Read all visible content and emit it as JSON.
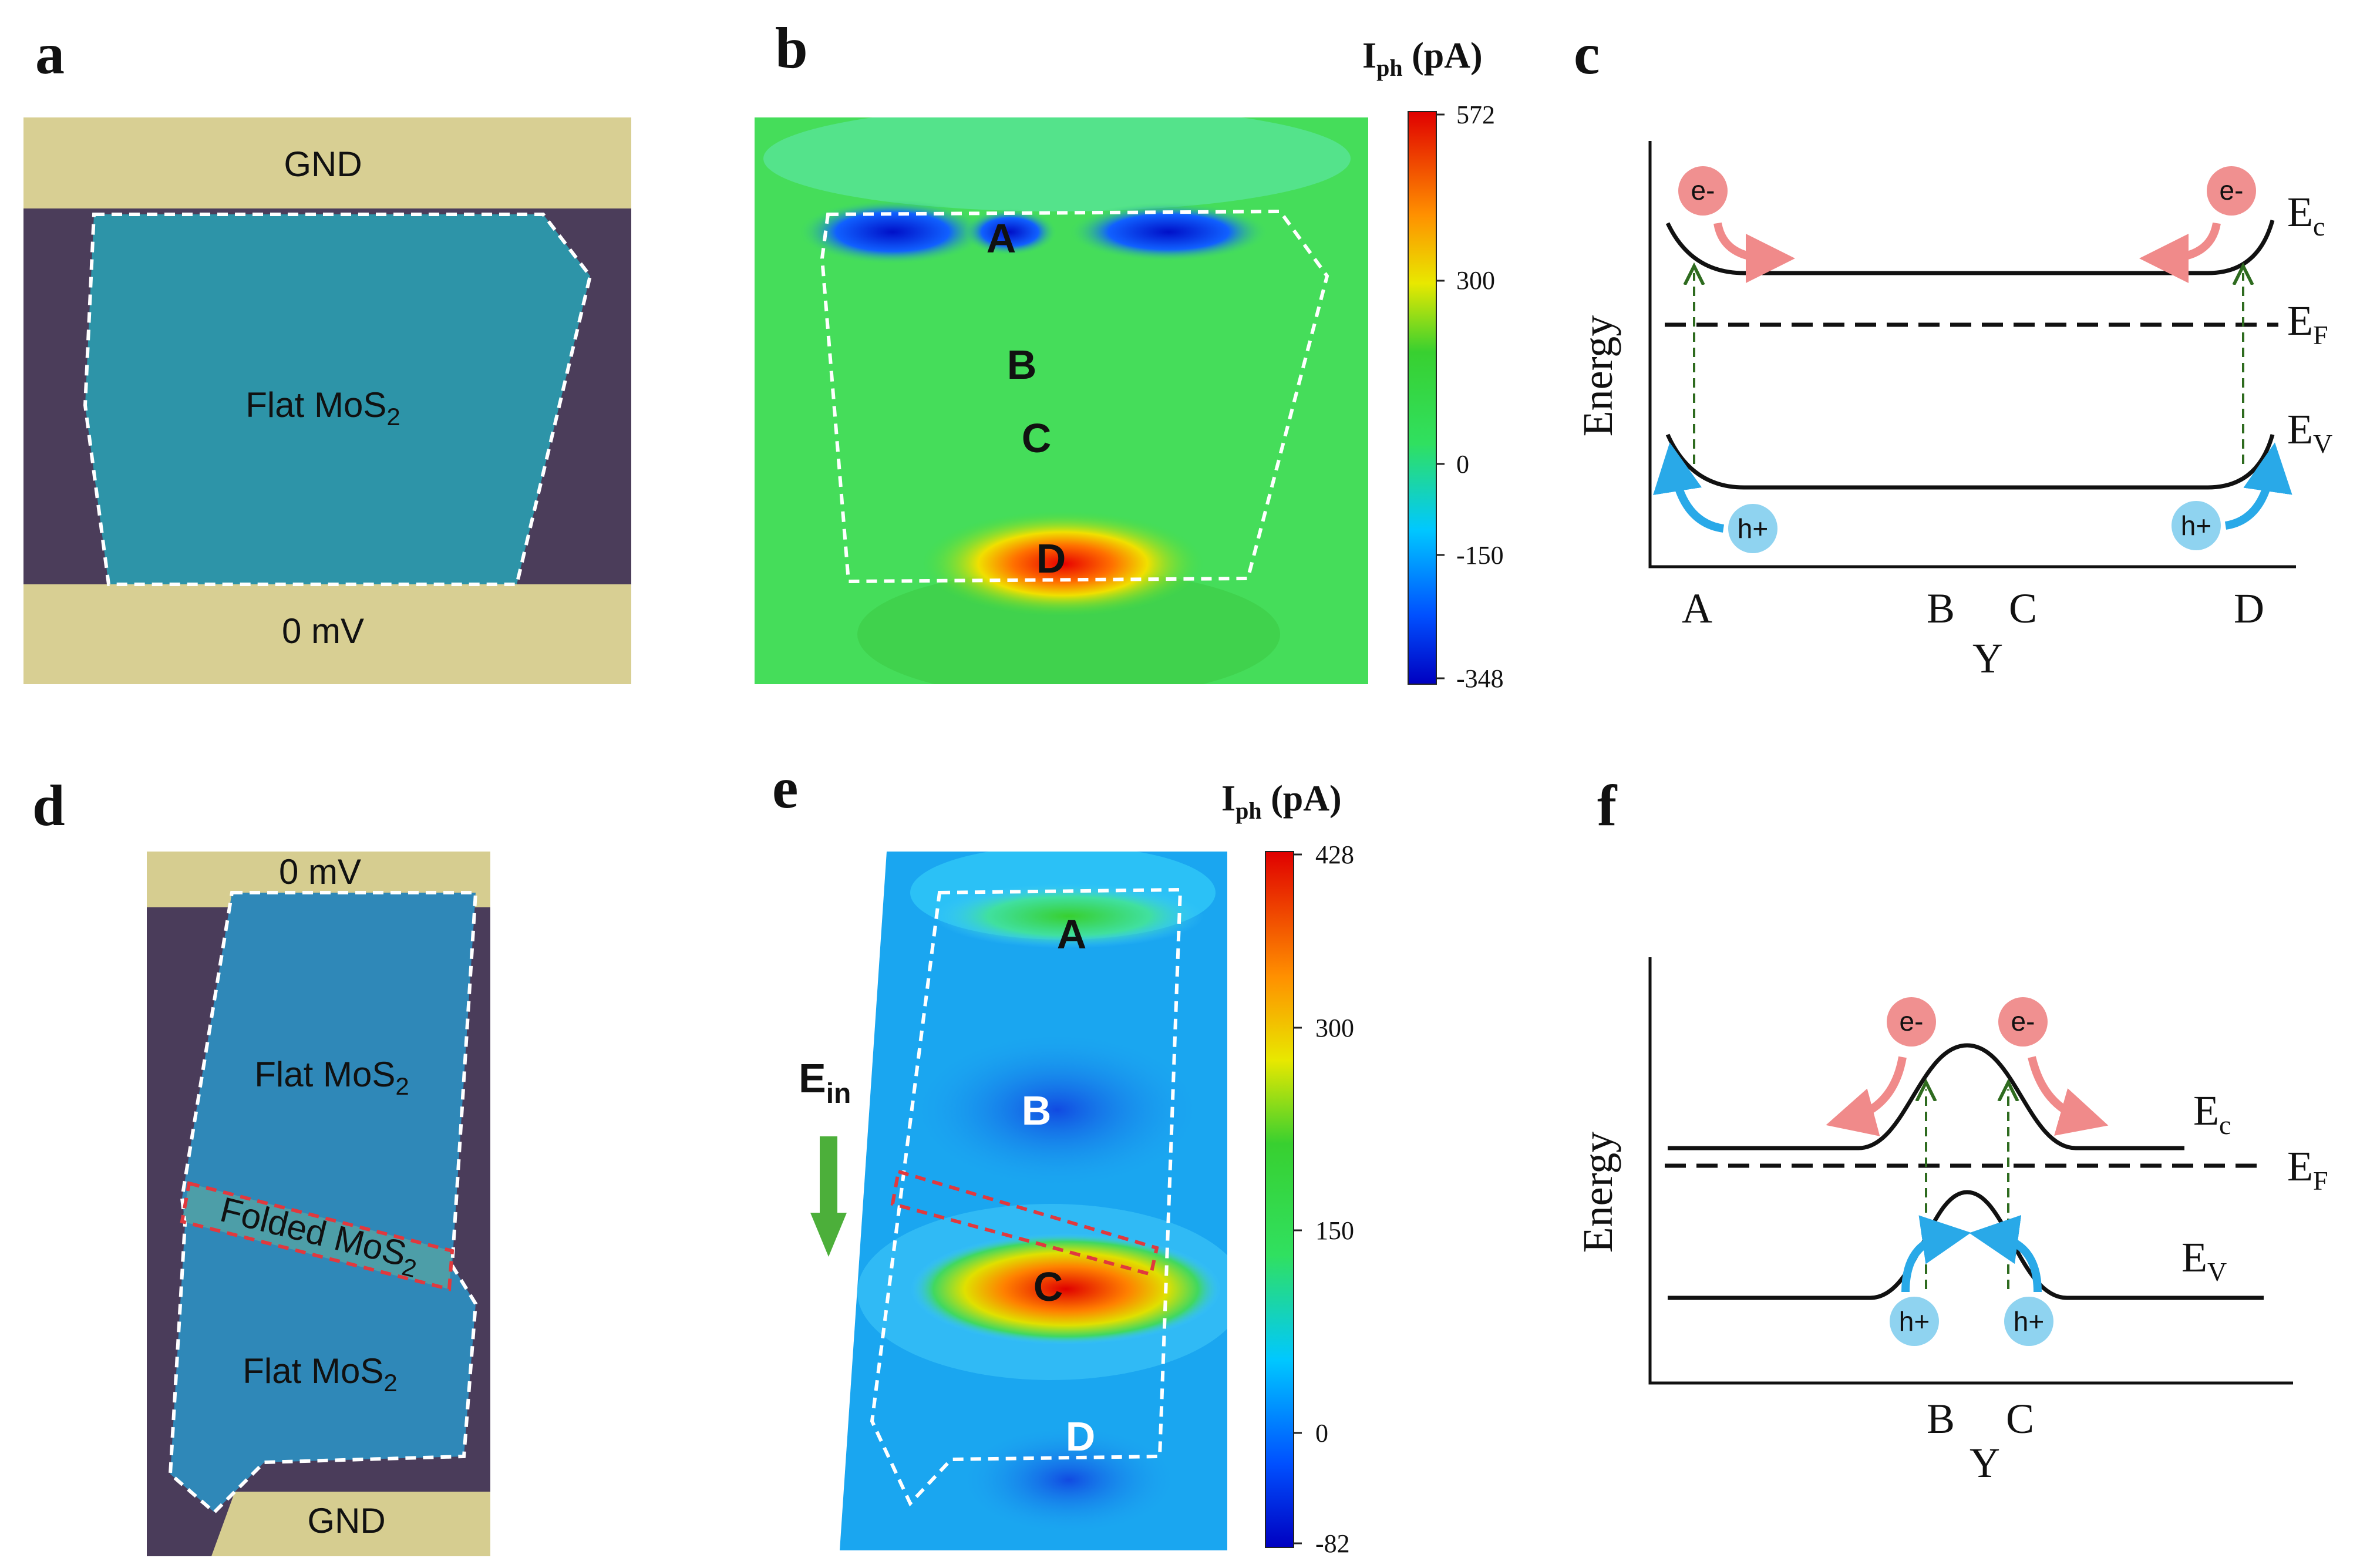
{
  "panels": {
    "a": {
      "label": "a",
      "top_contact": "GND",
      "bottom_contact": "0 mV",
      "flake_label": "Flat MoS",
      "flake_sub": "2"
    },
    "b": {
      "label": "b",
      "points": [
        "A",
        "B",
        "C",
        "D"
      ],
      "colorbar": {
        "title_main": "I",
        "title_sub": "ph",
        "title_unit": " (pA)",
        "ticks": [
          "572",
          "300",
          "0",
          "-150",
          "-348"
        ]
      }
    },
    "c": {
      "label": "c",
      "axis_y": "Energy",
      "axis_x": "Y",
      "x_points": [
        "A",
        "B",
        "C",
        "D"
      ],
      "bands": {
        "ec_main": "E",
        "ec_sub": "c",
        "ef_main": "E",
        "ef_sub": "F",
        "ev_main": "E",
        "ev_sub": "V"
      },
      "electron": "e-",
      "hole": "h+"
    },
    "d": {
      "label": "d",
      "top_contact": "0 mV",
      "bottom_contact": "GND",
      "flat_top_main": "Flat MoS",
      "flat_top_sub": "2",
      "folded_main": "Folded MoS",
      "folded_sub": "2",
      "flat_bottom_main": "Flat MoS",
      "flat_bottom_sub": "2"
    },
    "e": {
      "label": "e",
      "points": [
        "A",
        "B",
        "C",
        "D"
      ],
      "field_main": "E",
      "field_sub": "in",
      "colorbar": {
        "title_main": "I",
        "title_sub": "ph",
        "title_unit": " (pA)",
        "ticks": [
          "428",
          "300",
          "150",
          "0",
          "-82"
        ]
      }
    },
    "f": {
      "label": "f",
      "axis_y": "Energy",
      "axis_x": "Y",
      "x_points": [
        "B",
        "C"
      ],
      "bands": {
        "ec_main": "E",
        "ec_sub": "c",
        "ef_main": "E",
        "ef_sub": "F",
        "ev_main": "E",
        "ev_sub": "V"
      },
      "electron": "e-",
      "hole": "h+"
    }
  },
  "colors": {
    "accent_red": "#e0393e",
    "electron_fill": "#f09090",
    "hole_fill": "#8fd3f0",
    "hole_arrow": "#29a9e8",
    "electron_arrow": "#f08a8a",
    "dashed_green": "#2e6b1f",
    "field_arrow": "#4caf3a"
  }
}
